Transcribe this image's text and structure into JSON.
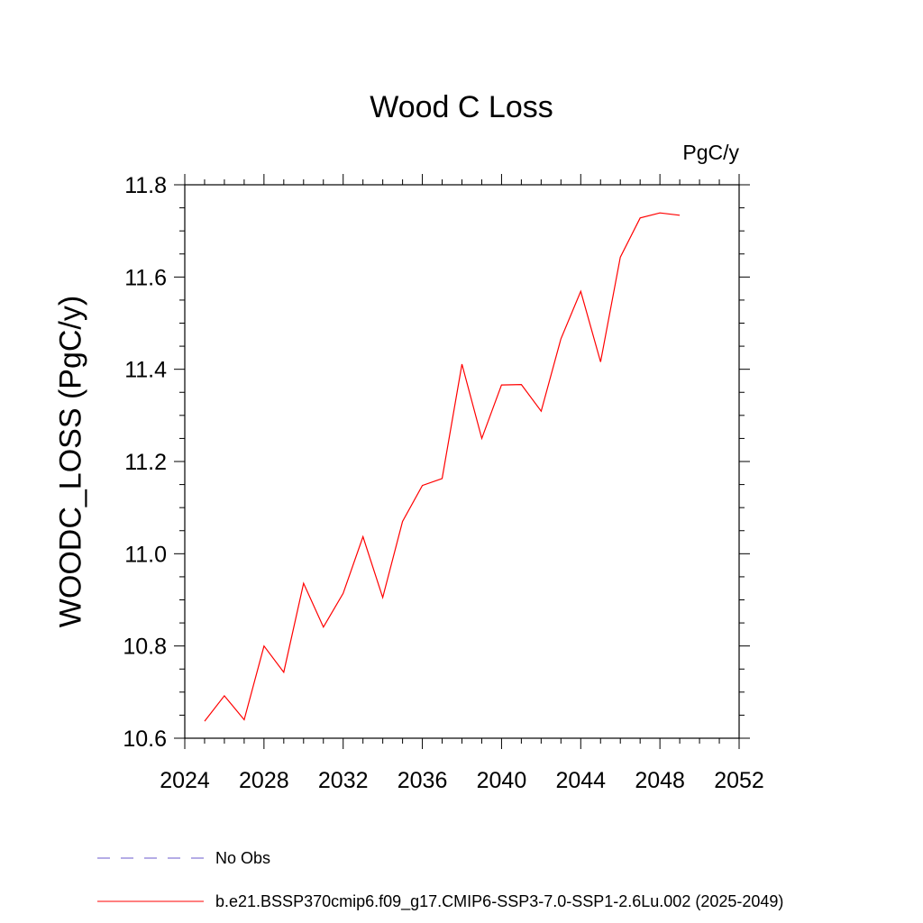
{
  "chart_data": {
    "type": "line",
    "title": "Wood C Loss",
    "units_label": "PgC/y",
    "ylabel": "WOODC_LOSS  (PgC/y)",
    "xlabel": "",
    "xlim": [
      2024,
      2052
    ],
    "ylim": [
      10.6,
      11.8
    ],
    "x_ticks": [
      2024,
      2028,
      2032,
      2036,
      2040,
      2044,
      2048,
      2052
    ],
    "y_ticks": [
      "10.6",
      "10.8",
      "11.0",
      "11.2",
      "11.4",
      "11.6",
      "11.8"
    ],
    "grid": false,
    "legend_position": "bottom",
    "series": [
      {
        "name": "b.e21.BSSP370cmip6.f09_g17.CMIP6-SSP3-7.0-SSP1-2.6Lu.002 (2025-2049)",
        "color": "#ff0000",
        "style": "solid",
        "x": [
          2025,
          2026,
          2027,
          2028,
          2029,
          2030,
          2031,
          2032,
          2033,
          2034,
          2035,
          2036,
          2037,
          2038,
          2039,
          2040,
          2041,
          2042,
          2043,
          2044,
          2045,
          2046,
          2047,
          2048,
          2049
        ],
        "y": [
          10.637,
          10.692,
          10.64,
          10.8,
          10.743,
          10.936,
          10.841,
          10.914,
          11.037,
          10.905,
          11.07,
          11.148,
          11.163,
          11.411,
          11.25,
          11.366,
          11.367,
          11.309,
          11.466,
          11.569,
          11.416,
          11.643,
          11.728,
          11.739,
          11.734
        ]
      }
    ],
    "legend": [
      {
        "label": "No Obs",
        "color": "#6a5acd",
        "style": "dashed"
      },
      {
        "label": "b.e21.BSSP370cmip6.f09_g17.CMIP6-SSP3-7.0-SSP1-2.6Lu.002 (2025-2049)",
        "color": "#ff0000",
        "style": "solid"
      }
    ]
  }
}
